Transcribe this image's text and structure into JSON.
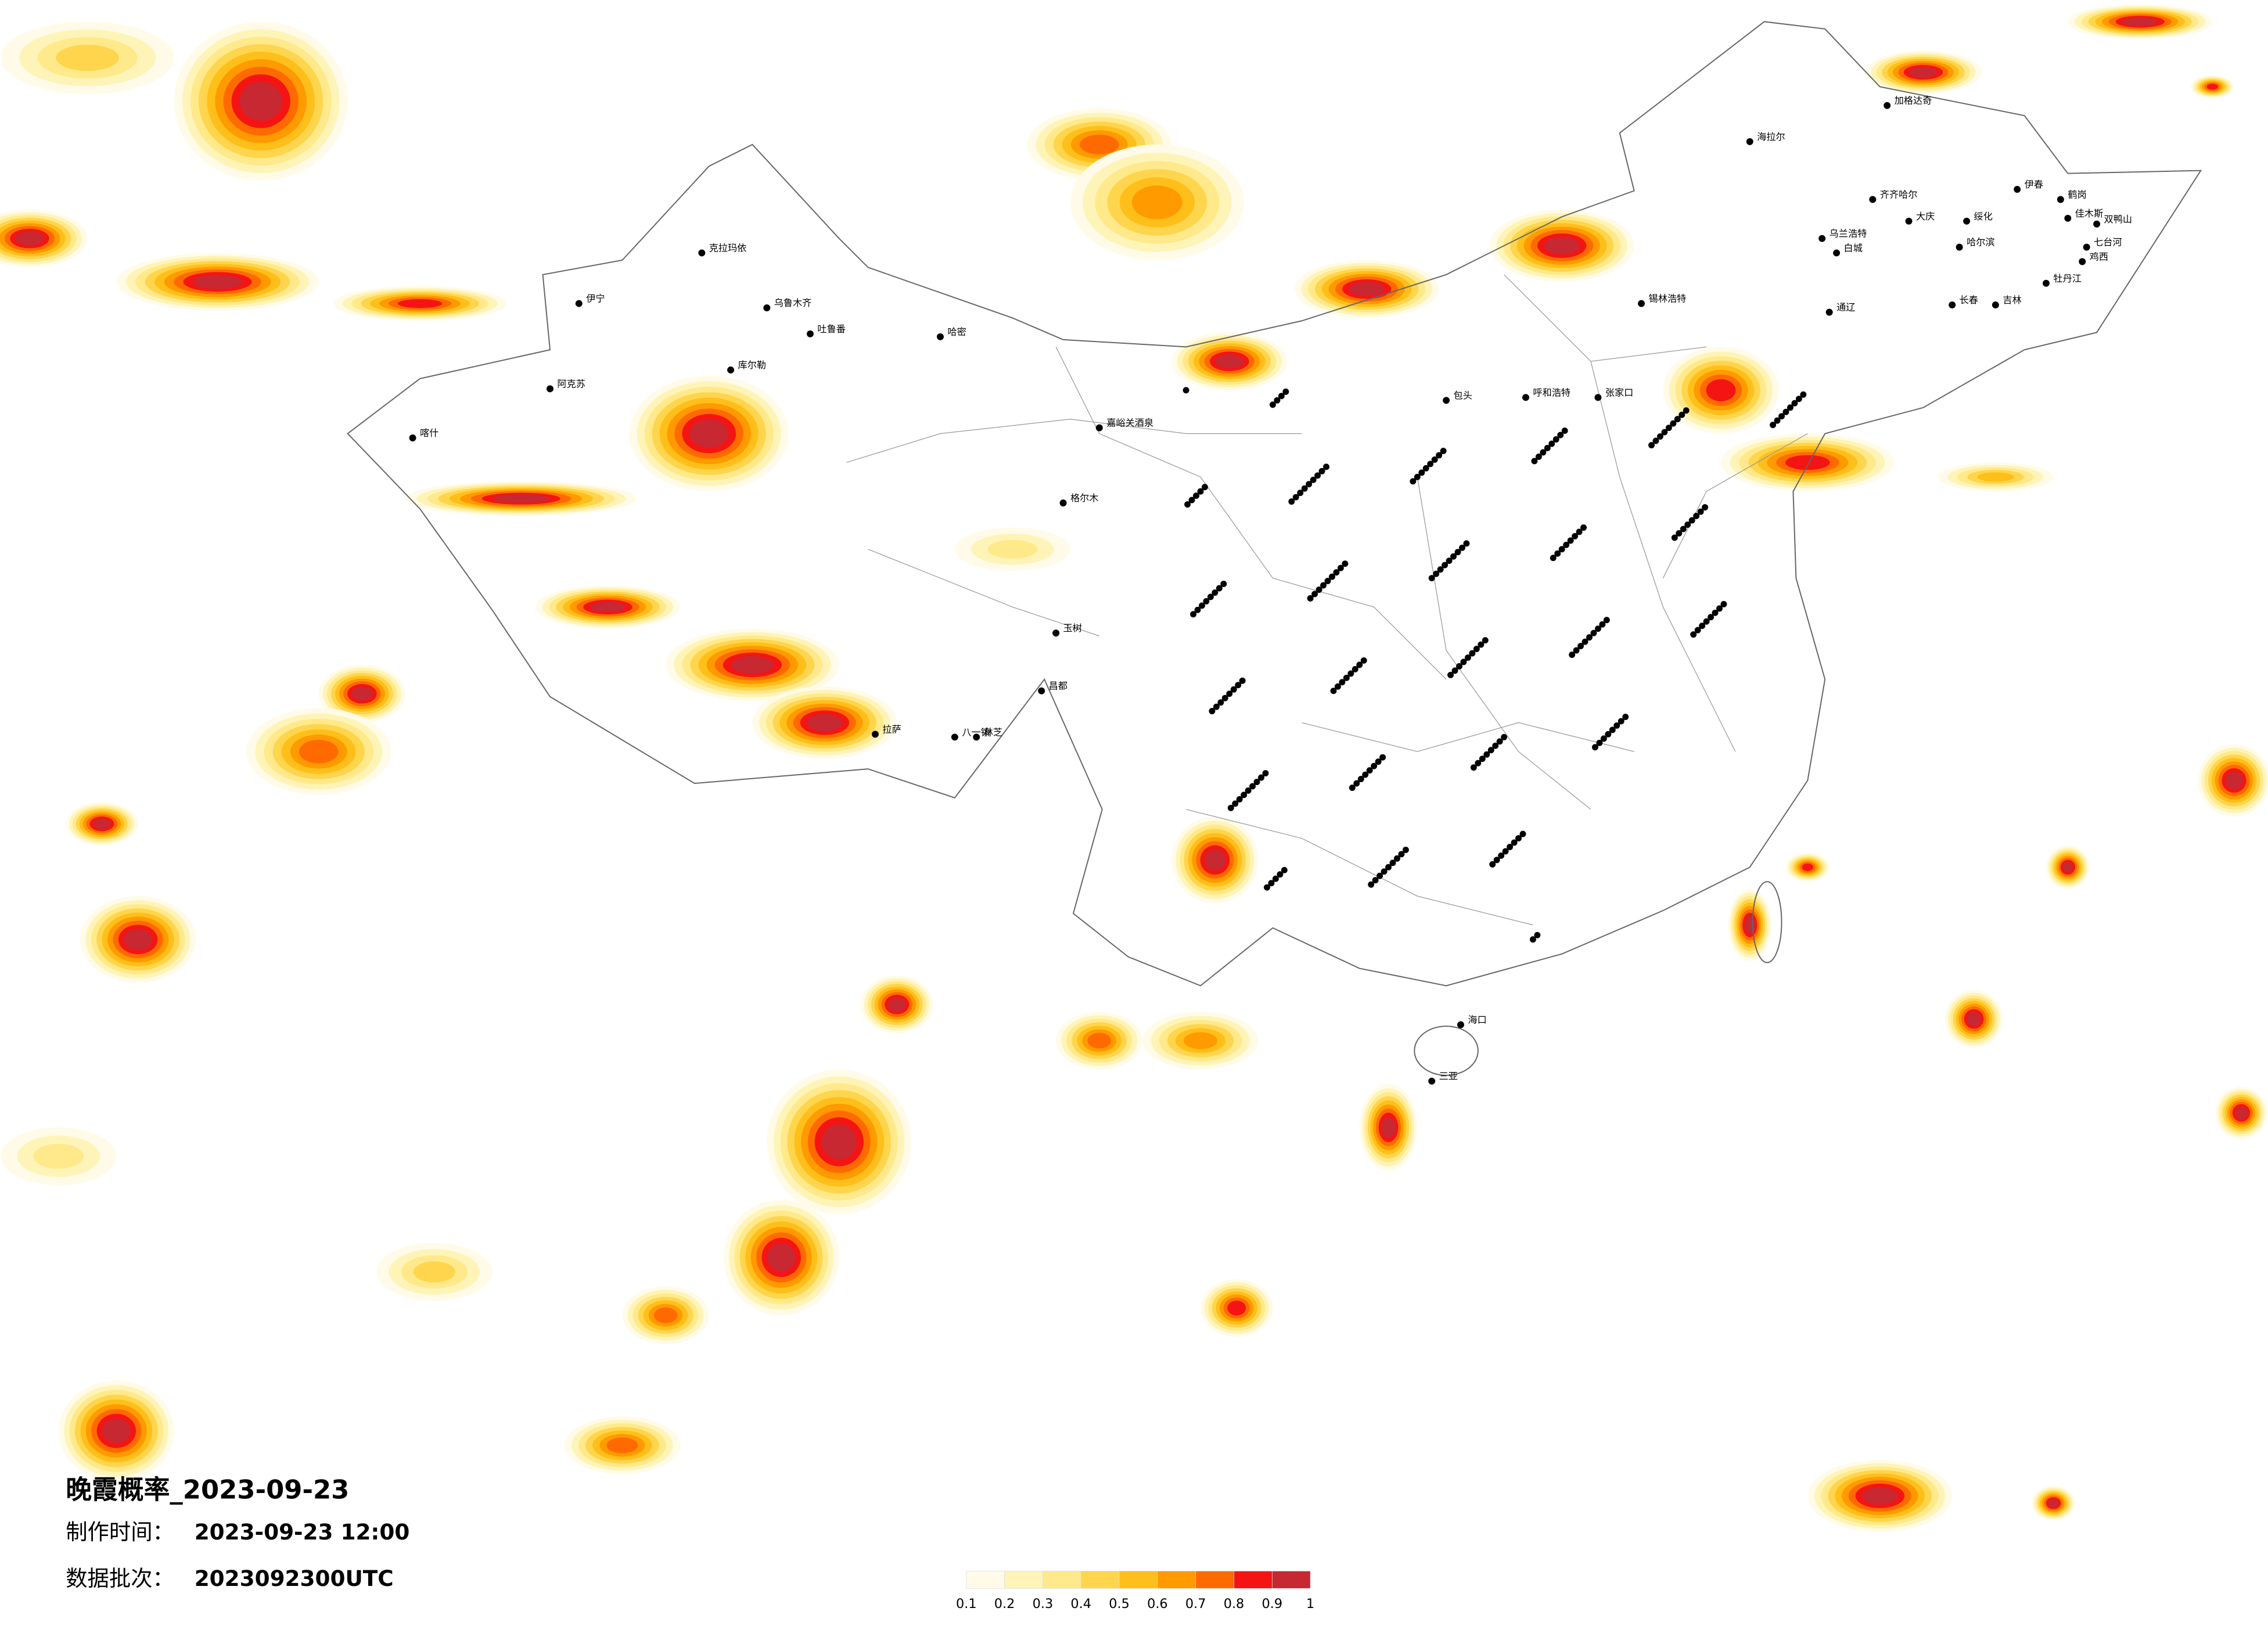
{
  "header": {
    "title": "晚霞概率_2023-09-23",
    "time_label": "制作时间：",
    "time": "2023-09-23 12:00",
    "batch_label": "数据批次：",
    "batch": "2023092300UTC"
  },
  "legend": {
    "colors": [
      "#fffbe8",
      "#fff4b8",
      "#ffe98a",
      "#ffd54d",
      "#ffbf1a",
      "#ff9a00",
      "#ff6a00",
      "#f51414",
      "#c82832"
    ],
    "ticks": [
      0.1,
      0.2,
      0.3,
      0.4,
      0.5,
      0.6,
      0.7,
      0.8,
      0.9,
      1
    ]
  },
  "cities": [
    "加格达奇",
    "海拉尔",
    "齐齐哈尔",
    "大庆",
    "绥化",
    "哈尔滨",
    "伊春",
    "鹤岗",
    "佳木斯",
    "双鸭山",
    "七台河",
    "鸡西",
    "牡丹江",
    "乌兰浩特",
    "白城",
    "长春",
    "吉林",
    "通辽",
    "锡林浩特",
    "克拉玛依",
    "伊宁",
    "阿克苏",
    "库尔勒",
    "吐鲁番",
    "哈密",
    "乌鲁木齐",
    "喀什",
    "嘉峪关酒泉",
    "格尔木",
    "拉萨",
    "八一镇",
    "林芝",
    "昌都",
    "玉树",
    "呼和浩特",
    "包头",
    "张家口",
    "海口",
    "三亚"
  ]
}
